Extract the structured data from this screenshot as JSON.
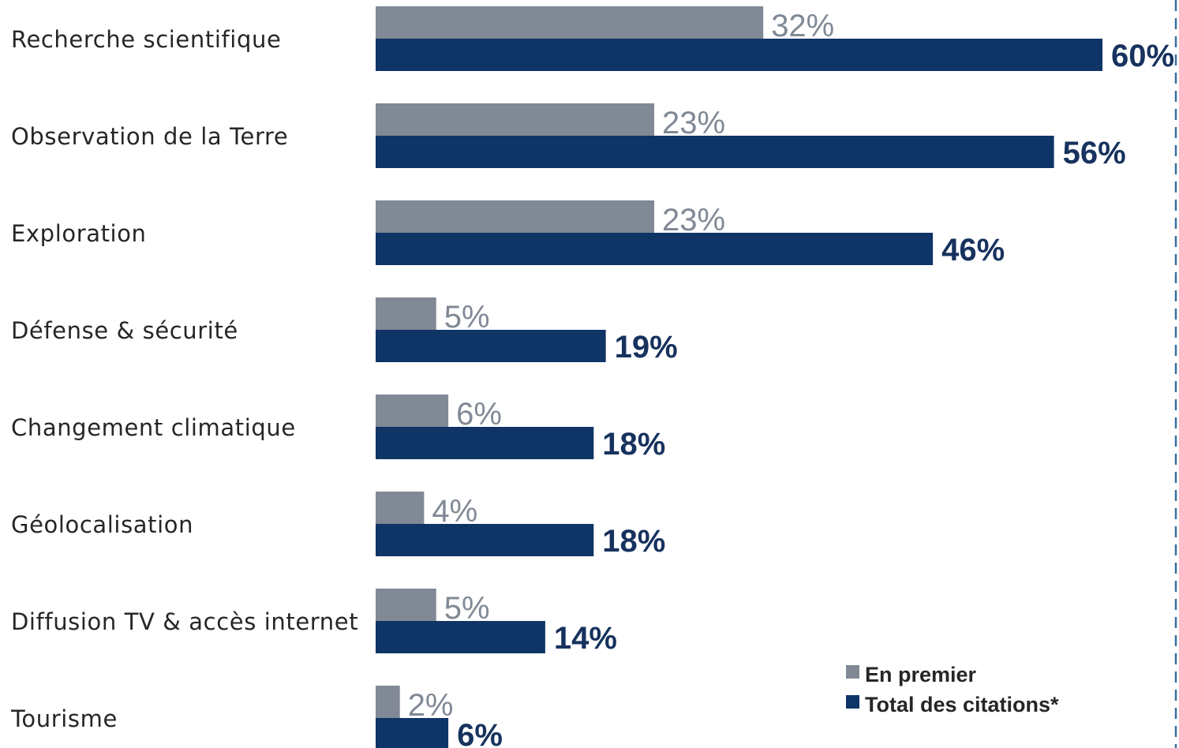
{
  "chart_data": {
    "type": "bar",
    "orientation": "horizontal",
    "categories": [
      "Recherche scientifique",
      "Observation de la Terre",
      "Exploration",
      "Défense & sécurité",
      "Changement climatique",
      "Géolocalisation",
      "Diffusion TV & accès internet",
      "Tourisme"
    ],
    "series": [
      {
        "name": "En premier",
        "values": [
          32,
          23,
          23,
          5,
          6,
          4,
          5,
          2
        ],
        "labels": [
          "32%",
          "23%",
          "23%",
          "5%",
          "6%",
          "4%",
          "5%",
          "2%"
        ],
        "color": "#808995"
      },
      {
        "name": "Total des citations*",
        "values": [
          60,
          56,
          46,
          19,
          18,
          18,
          14,
          6
        ],
        "labels": [
          "60%",
          "56%",
          "46%",
          "19%",
          "18%",
          "18%",
          "14%",
          "6%"
        ],
        "color": "#0f3466"
      }
    ],
    "unit": "%",
    "xlim": [
      0,
      60
    ],
    "grid": false,
    "legend_position": "bottom-right"
  }
}
